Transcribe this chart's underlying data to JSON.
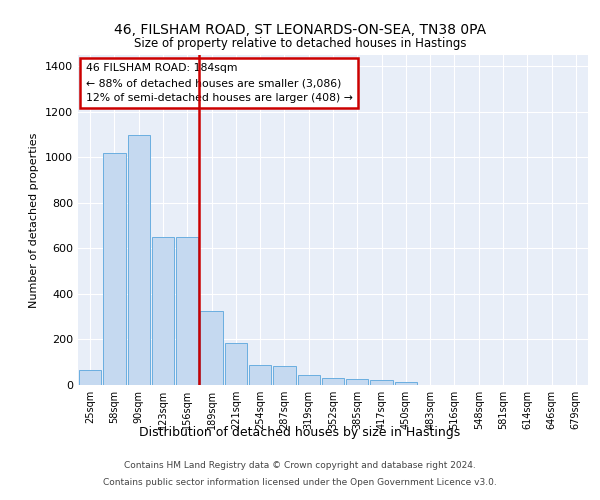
{
  "title_line1": "46, FILSHAM ROAD, ST LEONARDS-ON-SEA, TN38 0PA",
  "title_line2": "Size of property relative to detached houses in Hastings",
  "xlabel": "Distribution of detached houses by size in Hastings",
  "ylabel": "Number of detached properties",
  "bar_labels": [
    "25sqm",
    "58sqm",
    "90sqm",
    "123sqm",
    "156sqm",
    "189sqm",
    "221sqm",
    "254sqm",
    "287sqm",
    "319sqm",
    "352sqm",
    "385sqm",
    "417sqm",
    "450sqm",
    "483sqm",
    "516sqm",
    "548sqm",
    "581sqm",
    "614sqm",
    "646sqm",
    "679sqm"
  ],
  "bar_values": [
    65,
    1020,
    1100,
    650,
    650,
    325,
    185,
    90,
    85,
    45,
    30,
    25,
    20,
    15,
    0,
    0,
    0,
    0,
    0,
    0,
    0
  ],
  "bar_color": "#c5d9f0",
  "bar_edge_color": "#6aaee0",
  "vline_color": "#cc0000",
  "annotation_text": "46 FILSHAM ROAD: 184sqm\n← 88% of detached houses are smaller (3,086)\n12% of semi-detached houses are larger (408) →",
  "annotation_box_color": "#cc0000",
  "ylim": [
    0,
    1450
  ],
  "yticks": [
    0,
    200,
    400,
    600,
    800,
    1000,
    1200,
    1400
  ],
  "background_color": "#e8eef8",
  "grid_color": "#ffffff",
  "footer_line1": "Contains HM Land Registry data © Crown copyright and database right 2024.",
  "footer_line2": "Contains public sector information licensed under the Open Government Licence v3.0."
}
